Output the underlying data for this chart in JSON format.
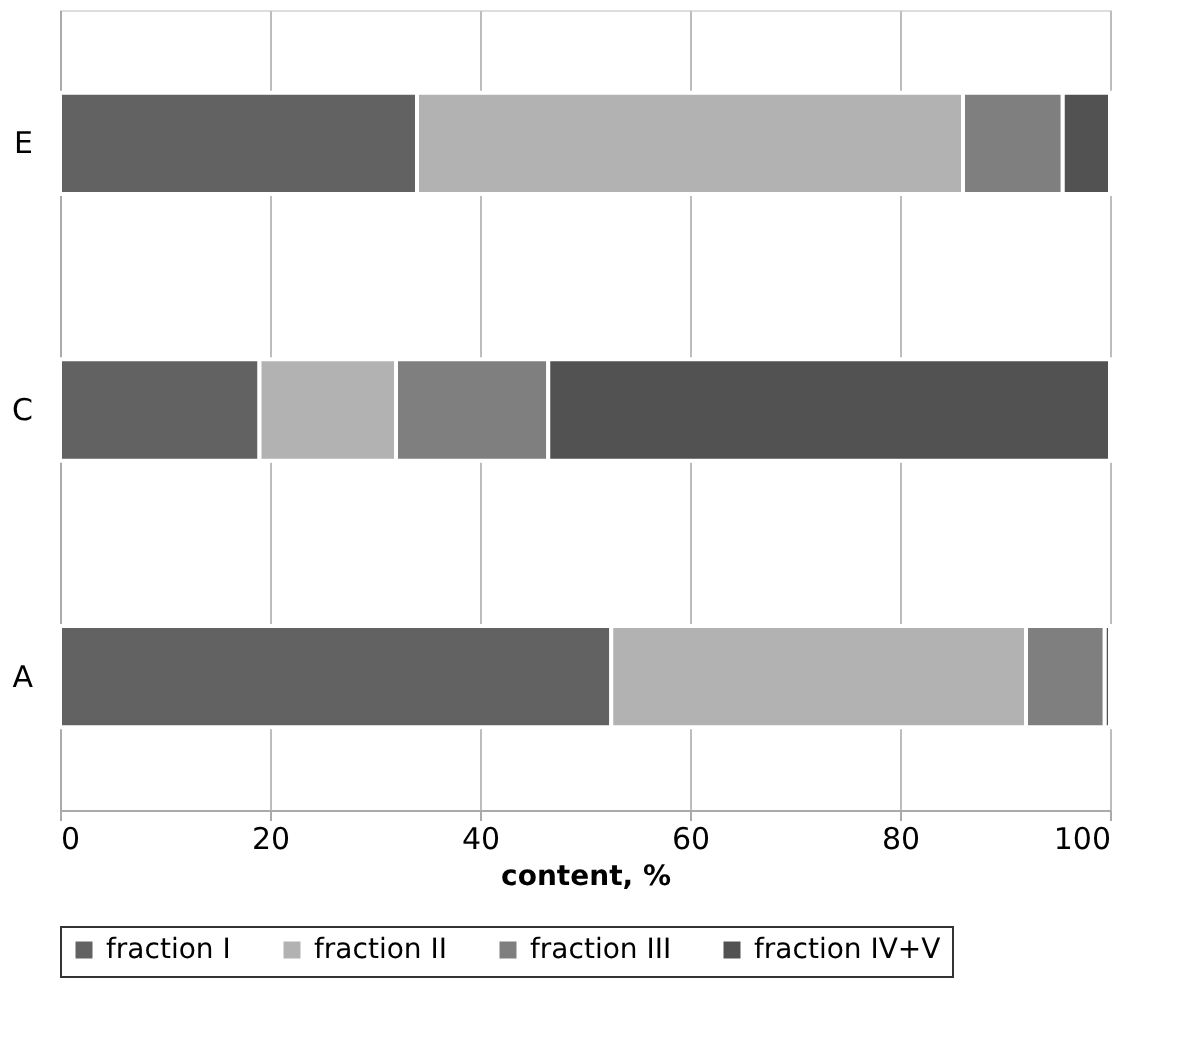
{
  "chart_data": {
    "type": "bar",
    "orientation": "horizontal",
    "stacked": true,
    "categories": [
      "E",
      "C",
      "A"
    ],
    "xlabel": "content, %",
    "xlim": [
      0,
      100
    ],
    "xticks": [
      0,
      20,
      40,
      60,
      80,
      100
    ],
    "grid": "x",
    "legend": "bottom",
    "series": [
      {
        "name": "fraction I",
        "color": "#626262",
        "values": [
          34,
          19,
          52.5
        ]
      },
      {
        "name": "fraction II",
        "color": "#b2b2b2",
        "values": [
          52,
          13,
          39.5
        ]
      },
      {
        "name": "fraction III",
        "color": "#7f7f7f",
        "values": [
          9.5,
          14.5,
          7.5
        ]
      },
      {
        "name": "fraction IV+V",
        "color": "#525252",
        "values": [
          4.5,
          53.5,
          0.5
        ]
      }
    ]
  }
}
